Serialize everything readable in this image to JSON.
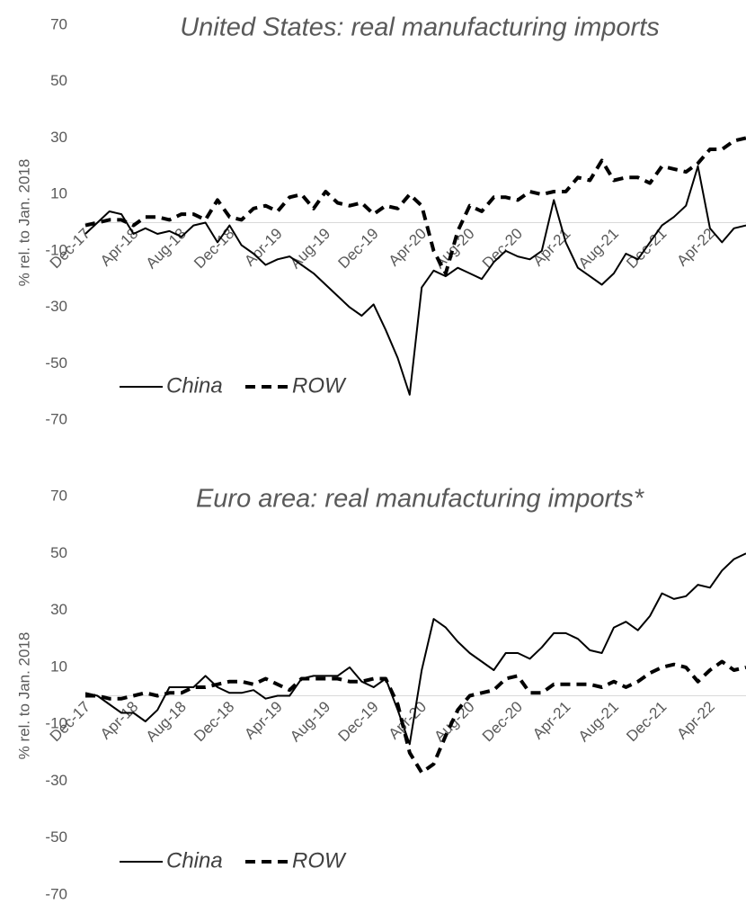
{
  "chart_data": [
    {
      "type": "line",
      "title": "United States: real manufacturing imports",
      "y_label": "% rel. to Jan. 2018",
      "categories": [
        "Dec-17",
        null,
        null,
        null,
        "Apr-18",
        null,
        null,
        null,
        "Aug-18",
        null,
        null,
        null,
        "Dec-18",
        null,
        null,
        null,
        "Apr-19",
        null,
        null,
        null,
        "Aug-19",
        null,
        null,
        null,
        "Dec-19",
        null,
        null,
        null,
        "Apr-20",
        null,
        null,
        null,
        "Aug-20",
        null,
        null,
        null,
        "Dec-20",
        null,
        null,
        null,
        "Apr-21",
        null,
        null,
        null,
        "Aug-21",
        null,
        null,
        null,
        "Dec-21",
        null,
        null,
        null,
        "Apr-22",
        null,
        null,
        null
      ],
      "series": [
        {
          "name": "China",
          "color": "#000000",
          "style": "solid",
          "values": [
            -4,
            0,
            4,
            3,
            -4,
            -2,
            -4,
            -3,
            -5,
            -1,
            0,
            -7,
            -1,
            -8,
            -11,
            -15,
            -13,
            -12,
            -15,
            -18,
            -22,
            -26,
            -30,
            -33,
            -29,
            -38,
            -48,
            -61,
            -23,
            -17,
            -19,
            -16,
            -18,
            -20,
            -14,
            -10,
            -12,
            -13,
            -10,
            8,
            -7,
            -16,
            -19,
            -22,
            -18,
            -11,
            -13,
            -7,
            -1,
            2,
            6,
            20,
            -2,
            -7,
            -2,
            -1
          ]
        },
        {
          "name": "ROW",
          "color": "#000000",
          "style": "dashed",
          "values": [
            -1,
            0,
            1,
            1,
            -1,
            2,
            2,
            1,
            3,
            3,
            1,
            8,
            2,
            1,
            5,
            6,
            4,
            9,
            10,
            5,
            11,
            7,
            6,
            7,
            3,
            6,
            5,
            10,
            6,
            -10,
            -18,
            -3,
            6,
            4,
            9,
            9,
            8,
            11,
            10,
            11,
            11,
            16,
            15,
            22,
            15,
            16,
            16,
            14,
            20,
            19,
            18,
            21,
            26,
            26,
            29,
            30
          ]
        }
      ],
      "ylim": [
        -70,
        70
      ],
      "yticks": [
        -70,
        -50,
        -30,
        -10,
        10,
        30,
        50,
        70
      ],
      "legend": "lower left"
    },
    {
      "type": "line",
      "title": "Euro area: real manufacturing imports*",
      "y_label": "% rel. to Jan. 2018",
      "categories": [
        "Dec-17",
        null,
        null,
        null,
        "Apr-18",
        null,
        null,
        null,
        "Aug-18",
        null,
        null,
        null,
        "Dec-18",
        null,
        null,
        null,
        "Apr-19",
        null,
        null,
        null,
        "Aug-19",
        null,
        null,
        null,
        "Dec-19",
        null,
        null,
        null,
        "Apr-20",
        null,
        null,
        null,
        "Aug-20",
        null,
        null,
        null,
        "Dec-20",
        null,
        null,
        null,
        "Apr-21",
        null,
        null,
        null,
        "Aug-21",
        null,
        null,
        null,
        "Dec-21",
        null,
        null,
        null,
        "Apr-22",
        null,
        null,
        null
      ],
      "series": [
        {
          "name": "China",
          "color": "#000000",
          "style": "solid",
          "values": [
            1,
            0,
            -3,
            -6,
            -6,
            -9,
            -5,
            3,
            3,
            3,
            7,
            3,
            1,
            1,
            2,
            -1,
            0,
            0,
            6,
            7,
            7,
            7,
            10,
            5,
            3,
            6,
            -5,
            -17,
            9,
            27,
            24,
            19,
            15,
            12,
            9,
            15,
            15,
            13,
            17,
            22,
            22,
            20,
            16,
            15,
            24,
            26,
            23,
            28,
            36,
            34,
            35,
            39,
            38,
            44,
            48,
            50
          ]
        },
        {
          "name": "ROW",
          "color": "#000000",
          "style": "dashed",
          "values": [
            0,
            0,
            -1,
            -1,
            0,
            1,
            0,
            1,
            1,
            3,
            3,
            4,
            5,
            5,
            4,
            6,
            4,
            2,
            6,
            6,
            6,
            6,
            5,
            5,
            6,
            6,
            -3,
            -20,
            -27,
            -24,
            -14,
            -5,
            0,
            1,
            2,
            6,
            7,
            1,
            1,
            4,
            4,
            4,
            4,
            3,
            5,
            3,
            5,
            8,
            10,
            11,
            10,
            5,
            9,
            12,
            9,
            10
          ]
        }
      ],
      "ylim": [
        -70,
        70
      ],
      "yticks": [
        -70,
        -50,
        -30,
        -10,
        10,
        30,
        50,
        70
      ],
      "legend": "lower left"
    }
  ]
}
